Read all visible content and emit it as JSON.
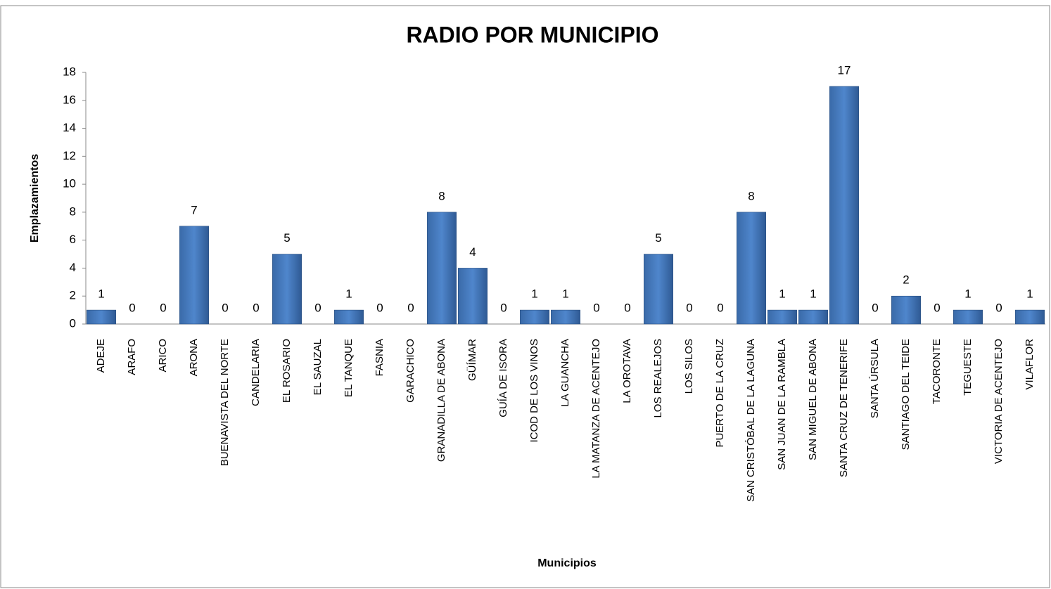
{
  "chart_data": {
    "type": "bar",
    "title": "RADIO POR MUNICIPIO",
    "x_label": "Municipios",
    "y_label": "Emplazamientos",
    "categories": [
      "ADEJE",
      "ARAFO",
      "ARICO",
      "ARONA",
      "BUENAVISTA DEL NORTE",
      "CANDELARIA",
      "EL ROSARIO",
      "EL SAUZAL",
      "EL TANQUE",
      "FASNIA",
      "GARACHICO",
      "GRANADILLA DE ABONA",
      "GÜÍMAR",
      "GUÍA DE ISORA",
      "ICOD DE LOS VINOS",
      "LA GUANCHA",
      "LA MATANZA DE ACENTEJO",
      "LA OROTAVA",
      "LOS REALEJOS",
      "LOS SILOS",
      "PUERTO DE LA CRUZ",
      "SAN CRISTÓBAL DE LA LAGUNA",
      "SAN JUAN DE LA RAMBLA",
      "SAN MIGUEL DE ABONA",
      "SANTA CRUZ DE TENERIFE",
      "SANTA ÚRSULA",
      "SANTIAGO DEL TEIDE",
      "TACORONTE",
      "TEGUESTE",
      "VICTORIA DE ACENTEJO",
      "VILAFLOR"
    ],
    "values": [
      1,
      0,
      0,
      7,
      0,
      0,
      5,
      0,
      1,
      0,
      0,
      8,
      4,
      0,
      1,
      1,
      0,
      0,
      5,
      0,
      0,
      8,
      1,
      1,
      17,
      0,
      2,
      0,
      1,
      0,
      1
    ],
    "color": "#4a7ebb",
    "ylim": [
      0,
      18
    ],
    "yticks": [
      0,
      2,
      4,
      6,
      8,
      10,
      12,
      14,
      16,
      18
    ],
    "grid": false
  }
}
